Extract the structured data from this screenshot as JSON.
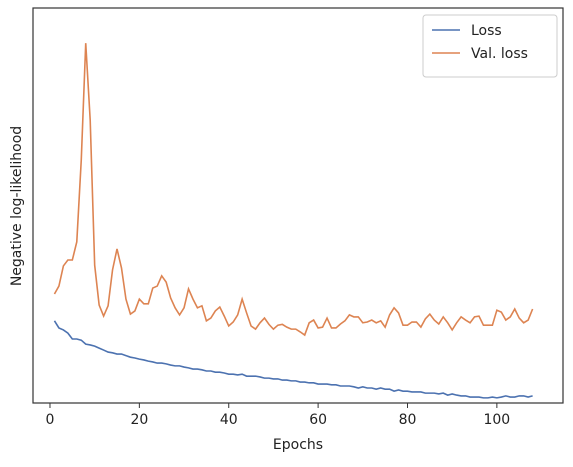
{
  "chart_data": {
    "type": "line",
    "x_label": "Epochs",
    "y_label": "Negative log-likelihood",
    "x": [
      1,
      2,
      3,
      4,
      5,
      6,
      7,
      8,
      9,
      10,
      11,
      12,
      13,
      14,
      15,
      16,
      17,
      18,
      19,
      20,
      21,
      22,
      23,
      24,
      25,
      26,
      27,
      28,
      29,
      30,
      31,
      32,
      33,
      34,
      35,
      36,
      37,
      38,
      39,
      40,
      41,
      42,
      43,
      44,
      45,
      46,
      47,
      48,
      49,
      50,
      51,
      52,
      53,
      54,
      55,
      56,
      57,
      58,
      59,
      60,
      61,
      62,
      63,
      64,
      65,
      66,
      67,
      68,
      69,
      70,
      71,
      72,
      73,
      74,
      75,
      76,
      77,
      78,
      79,
      80,
      81,
      82,
      83,
      84,
      85,
      86,
      87,
      88,
      89,
      90,
      91,
      92,
      93,
      94,
      95,
      96,
      97,
      98,
      99,
      100,
      101,
      102,
      103,
      104,
      105,
      106,
      107,
      108
    ],
    "series": [
      {
        "name": "Loss",
        "color": "#4c72b0",
        "values": [
          20.8,
          19.0,
          18.5,
          17.7,
          16.2,
          16.2,
          15.9,
          14.9,
          14.7,
          14.4,
          13.9,
          13.4,
          12.9,
          12.7,
          12.4,
          12.4,
          12.0,
          11.6,
          11.4,
          11.1,
          10.9,
          10.6,
          10.4,
          10.1,
          10.1,
          9.9,
          9.6,
          9.4,
          9.4,
          9.1,
          8.9,
          8.6,
          8.6,
          8.4,
          8.1,
          8.1,
          7.8,
          7.8,
          7.6,
          7.3,
          7.3,
          7.1,
          7.3,
          6.8,
          6.8,
          6.8,
          6.6,
          6.3,
          6.3,
          6.1,
          6.1,
          5.8,
          5.8,
          5.6,
          5.6,
          5.3,
          5.3,
          5.1,
          5.1,
          4.8,
          4.8,
          4.8,
          4.6,
          4.6,
          4.3,
          4.3,
          4.3,
          4.1,
          3.8,
          4.1,
          3.8,
          3.8,
          3.5,
          3.8,
          3.5,
          3.5,
          3.0,
          3.3,
          3.0,
          3.0,
          2.8,
          2.8,
          2.8,
          2.5,
          2.5,
          2.5,
          2.3,
          2.5,
          2.0,
          2.3,
          2.0,
          1.8,
          1.8,
          1.5,
          1.5,
          1.5,
          1.3,
          1.3,
          1.5,
          1.3,
          1.5,
          1.8,
          1.5,
          1.5,
          1.8,
          1.8,
          1.5,
          1.8
        ]
      },
      {
        "name": "Val. loss",
        "color": "#dd8452",
        "values": [
          27.6,
          29.6,
          34.7,
          36.2,
          36.2,
          40.8,
          61.5,
          91.1,
          71.6,
          34.9,
          24.8,
          22.0,
          24.6,
          33.7,
          39.0,
          34.2,
          26.3,
          22.5,
          23.3,
          26.3,
          25.1,
          25.1,
          29.1,
          29.6,
          32.2,
          30.6,
          26.6,
          24.1,
          22.3,
          24.1,
          28.9,
          26.3,
          24.1,
          24.6,
          20.8,
          21.5,
          23.3,
          24.3,
          22.0,
          19.5,
          20.5,
          22.3,
          26.3,
          22.8,
          19.5,
          18.7,
          20.3,
          21.5,
          19.9,
          18.7,
          19.7,
          19.9,
          19.2,
          18.7,
          18.7,
          18.0,
          17.2,
          20.3,
          21.0,
          19.0,
          19.2,
          21.5,
          19.0,
          19.0,
          20.0,
          20.8,
          22.3,
          21.8,
          21.8,
          20.3,
          20.5,
          21.0,
          20.3,
          20.8,
          19.2,
          22.3,
          24.1,
          22.8,
          19.7,
          19.7,
          20.5,
          20.5,
          19.2,
          21.3,
          22.5,
          21.0,
          20.0,
          21.8,
          20.3,
          18.5,
          20.3,
          21.8,
          21.0,
          20.3,
          21.8,
          22.0,
          19.7,
          19.7,
          19.7,
          23.5,
          23.0,
          21.0,
          21.8,
          23.8,
          21.5,
          20.3,
          21.0,
          23.8
        ]
      }
    ],
    "xlim": [
      -3.8,
      114.8
    ],
    "xticks": [
      0,
      20,
      40,
      60,
      80,
      100
    ],
    "ylim": [
      0,
      100
    ],
    "legend": "upper right"
  }
}
